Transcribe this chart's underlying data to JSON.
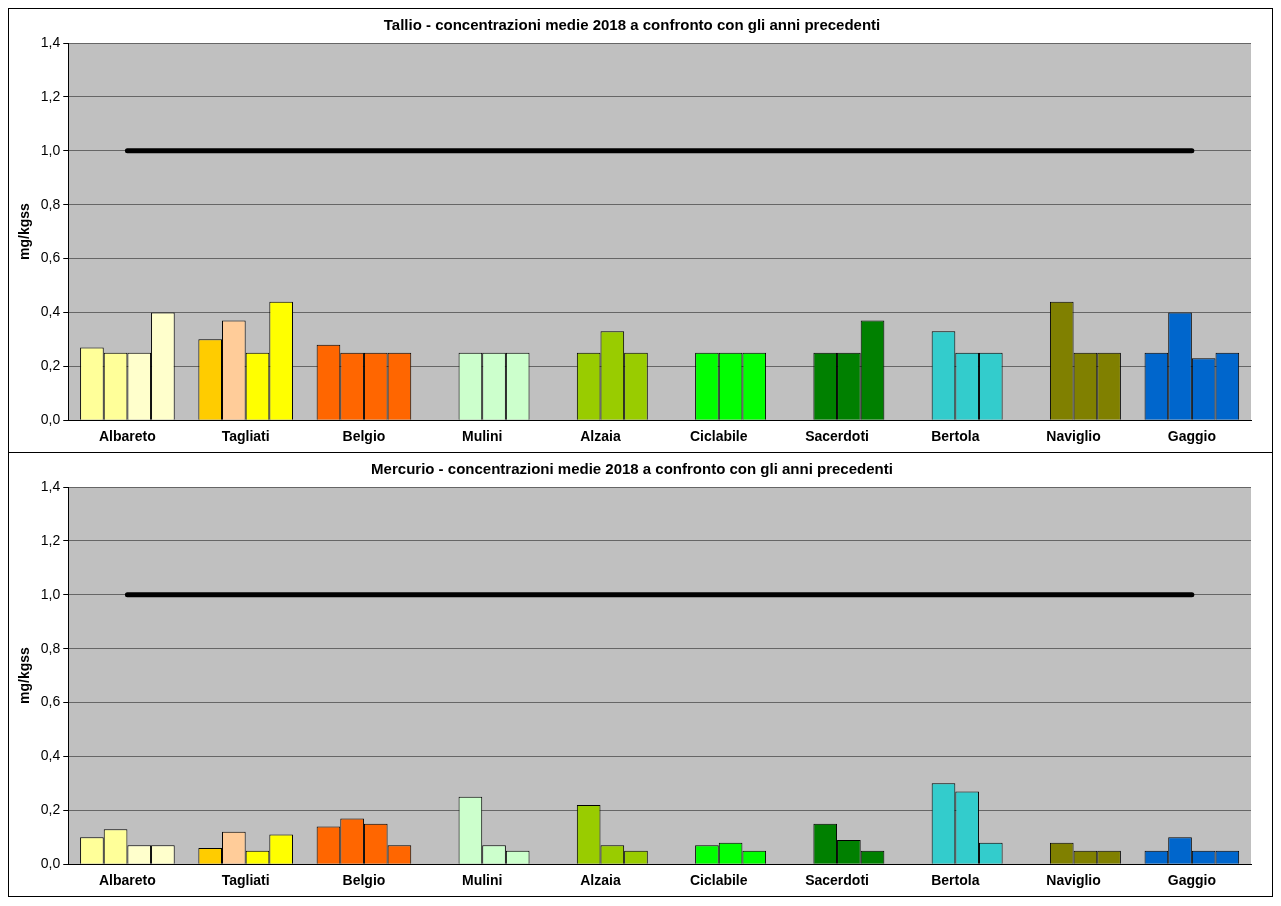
{
  "chart_data": [
    {
      "type": "bar",
      "title": "Tallio - concentrazioni medie 2018 a confronto con gli anni precedenti",
      "ylabel": "mg/kgss",
      "categories": [
        "Albareto",
        "Tagliati",
        "Belgio",
        "Mulini",
        "Alzaia",
        "Ciclabile",
        "Sacerdoti",
        "Bertola",
        "Naviglio",
        "Gaggio"
      ],
      "series": [
        {
          "values": [
            0.27,
            0.3,
            0.28,
            null,
            null,
            null,
            null,
            null,
            null,
            0.25
          ],
          "colors": [
            "#ffff99",
            "#ffcc00",
            "#ff6600",
            "#ccffcc",
            "#99cc00",
            "#00ff00",
            "#008000",
            "#33cccc",
            "#808000",
            "#0066cc"
          ]
        },
        {
          "values": [
            0.25,
            0.37,
            0.25,
            0.25,
            0.25,
            0.25,
            0.25,
            0.33,
            0.44,
            0.4
          ],
          "colors": [
            "#ffff99",
            "#ffcc99",
            "#ff6600",
            "#ccffcc",
            "#99cc00",
            "#00ff00",
            "#008000",
            "#33cccc",
            "#808000",
            "#0066cc"
          ]
        },
        {
          "values": [
            0.25,
            0.25,
            0.25,
            0.25,
            0.33,
            0.25,
            0.25,
            0.25,
            0.25,
            0.23
          ],
          "colors": [
            "#ffffcc",
            "#ffff00",
            "#ff6600",
            "#ccffcc",
            "#99cc00",
            "#00ff00",
            "#008000",
            "#33cccc",
            "#808000",
            "#0066cc"
          ]
        },
        {
          "values": [
            0.4,
            0.44,
            0.25,
            0.25,
            0.25,
            0.25,
            0.37,
            0.25,
            0.25,
            0.25
          ],
          "colors": [
            "#ffffcc",
            "#ffff00",
            "#ff6600",
            "#ccffcc",
            "#99cc00",
            "#00ff00",
            "#008000",
            "#33cccc",
            "#808000",
            "#0066cc"
          ]
        }
      ],
      "ylim": [
        0,
        1.4
      ],
      "yticks": [
        {
          "value": 0,
          "label": "0,0"
        },
        {
          "value": 0.2,
          "label": "0,2"
        },
        {
          "value": 0.4,
          "label": "0,4"
        },
        {
          "value": 0.6,
          "label": "0,6"
        },
        {
          "value": 0.8,
          "label": "0,8"
        },
        {
          "value": 1,
          "label": "1,0"
        },
        {
          "value": 1.2,
          "label": "1,2"
        },
        {
          "value": 1.4,
          "label": "1,4"
        }
      ],
      "ref_lines": [
        {
          "axis": "y",
          "value": 1,
          "color": "#000000"
        }
      ],
      "grid": "y",
      "legend": false
    },
    {
      "type": "bar",
      "title": "Mercurio - concentrazioni medie 2018 a confronto con gli anni precedenti",
      "ylabel": "mg/kgss",
      "categories": [
        "Albareto",
        "Tagliati",
        "Belgio",
        "Mulini",
        "Alzaia",
        "Ciclabile",
        "Sacerdoti",
        "Bertola",
        "Naviglio",
        "Gaggio"
      ],
      "series": [
        {
          "values": [
            0.1,
            0.06,
            0.14,
            null,
            null,
            null,
            null,
            null,
            null,
            0.05
          ],
          "colors": [
            "#ffff99",
            "#ffcc00",
            "#ff6600",
            "#ccffcc",
            "#99cc00",
            "#00ff00",
            "#008000",
            "#33cccc",
            "#808000",
            "#0066cc"
          ]
        },
        {
          "values": [
            0.13,
            0.12,
            0.17,
            0.25,
            0.22,
            0.07,
            0.15,
            0.3,
            0.08,
            0.1
          ],
          "colors": [
            "#ffff99",
            "#ffcc99",
            "#ff6600",
            "#ccffcc",
            "#99cc00",
            "#00ff00",
            "#008000",
            "#33cccc",
            "#808000",
            "#0066cc"
          ]
        },
        {
          "values": [
            0.07,
            0.05,
            0.15,
            0.07,
            0.07,
            0.08,
            0.09,
            0.27,
            0.05,
            0.05
          ],
          "colors": [
            "#ffffcc",
            "#ffff00",
            "#ff6600",
            "#ccffcc",
            "#99cc00",
            "#00ff00",
            "#008000",
            "#33cccc",
            "#808000",
            "#0066cc"
          ]
        },
        {
          "values": [
            0.07,
            0.11,
            0.07,
            0.05,
            0.05,
            0.05,
            0.05,
            0.08,
            0.05,
            0.05
          ],
          "colors": [
            "#ffffcc",
            "#ffff00",
            "#ff6600",
            "#ccffcc",
            "#99cc00",
            "#00ff00",
            "#008000",
            "#33cccc",
            "#808000",
            "#0066cc"
          ]
        }
      ],
      "ylim": [
        0,
        1.4
      ],
      "yticks": [
        {
          "value": 0,
          "label": "0,0"
        },
        {
          "value": 0.2,
          "label": "0,2"
        },
        {
          "value": 0.4,
          "label": "0,4"
        },
        {
          "value": 0.6,
          "label": "0,6"
        },
        {
          "value": 0.8,
          "label": "0,8"
        },
        {
          "value": 1,
          "label": "1,0"
        },
        {
          "value": 1.2,
          "label": "1,2"
        },
        {
          "value": 1.4,
          "label": "1,4"
        }
      ],
      "ref_lines": [
        {
          "axis": "y",
          "value": 1,
          "color": "#000000"
        }
      ],
      "grid": "y",
      "legend": false
    }
  ]
}
